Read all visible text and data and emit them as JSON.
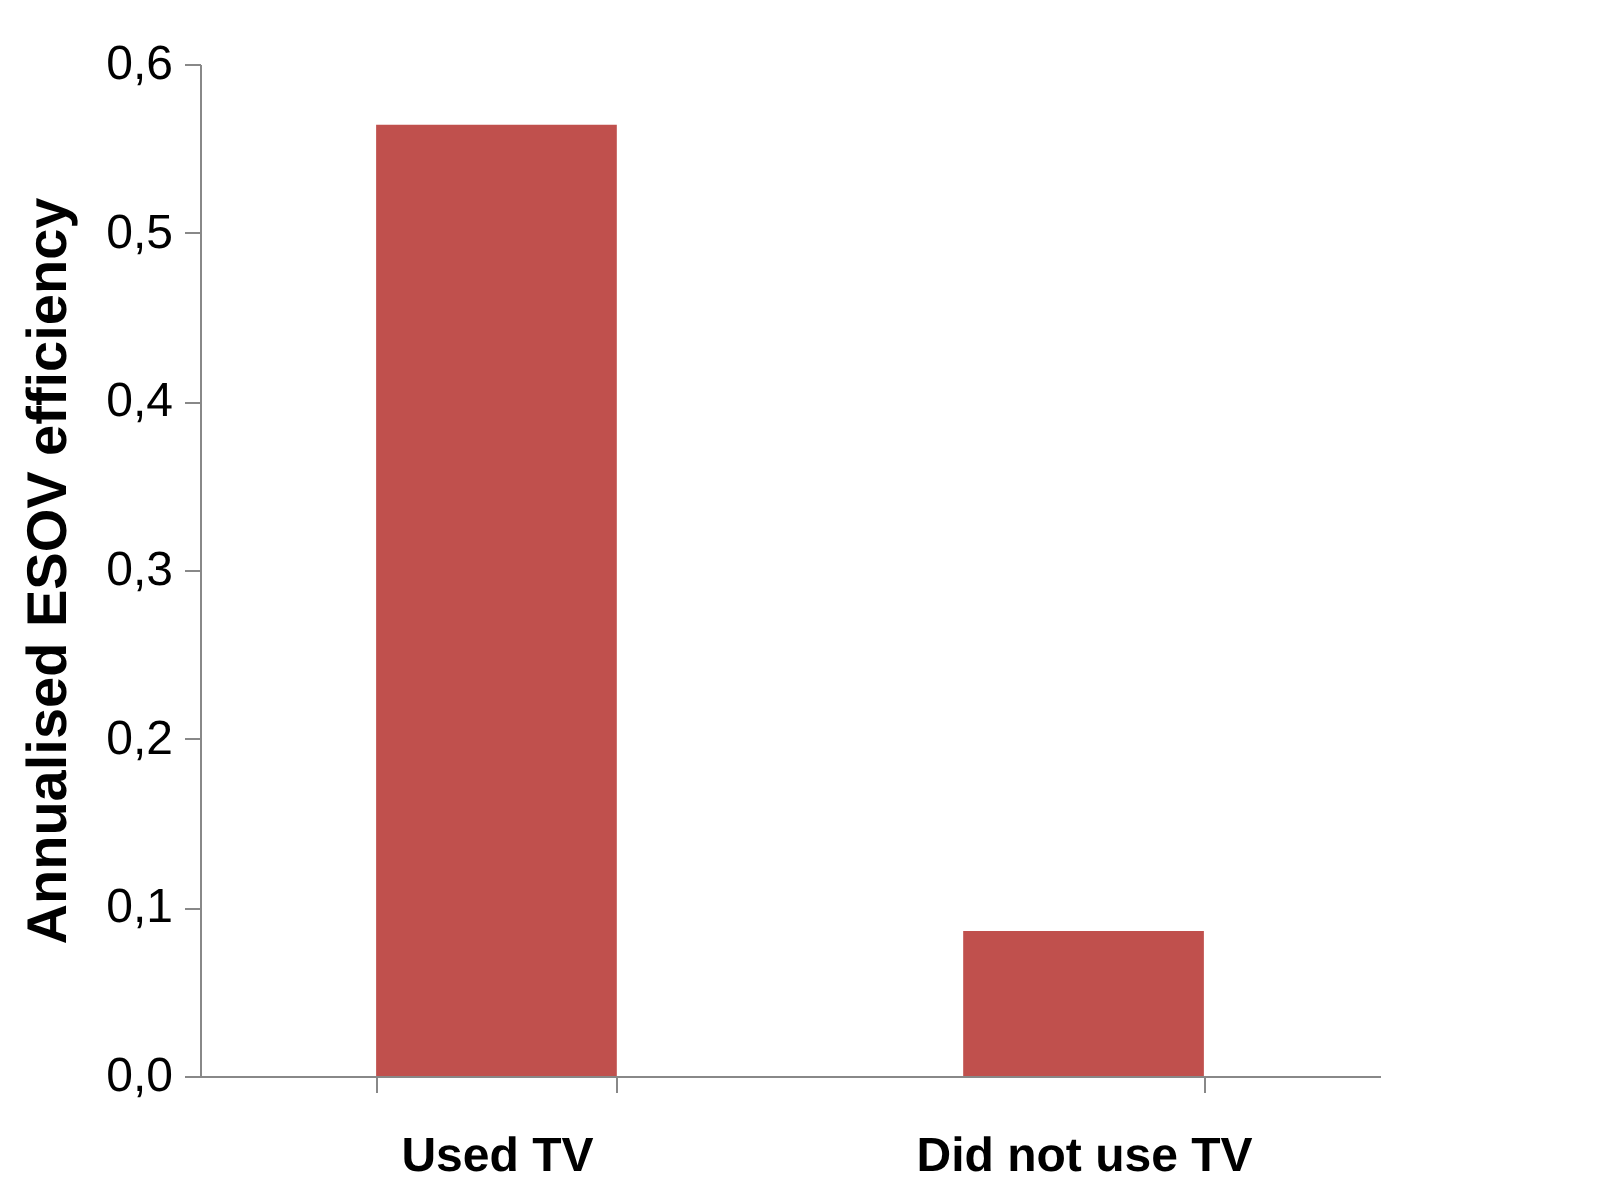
{
  "chart_data": {
    "type": "bar",
    "ylabel": "Annualised ESOV efficiency",
    "categories": [
      "Used TV",
      "Did not use TV"
    ],
    "series": [
      {
        "color": "#c0504d",
        "values": [
          0.564,
          0.086
        ]
      }
    ],
    "ylim": [
      0,
      0.6
    ],
    "yticks": [
      {
        "value": 0,
        "label": "0,0"
      },
      {
        "value": 0.1,
        "label": "0,1"
      },
      {
        "value": 0.2,
        "label": "0,2"
      },
      {
        "value": 0.3,
        "label": "0,3"
      },
      {
        "value": 0.4,
        "label": "0,4"
      },
      {
        "value": 0.5,
        "label": "0,5"
      },
      {
        "value": 0.6,
        "label": "0,6"
      }
    ],
    "grid": false
  }
}
